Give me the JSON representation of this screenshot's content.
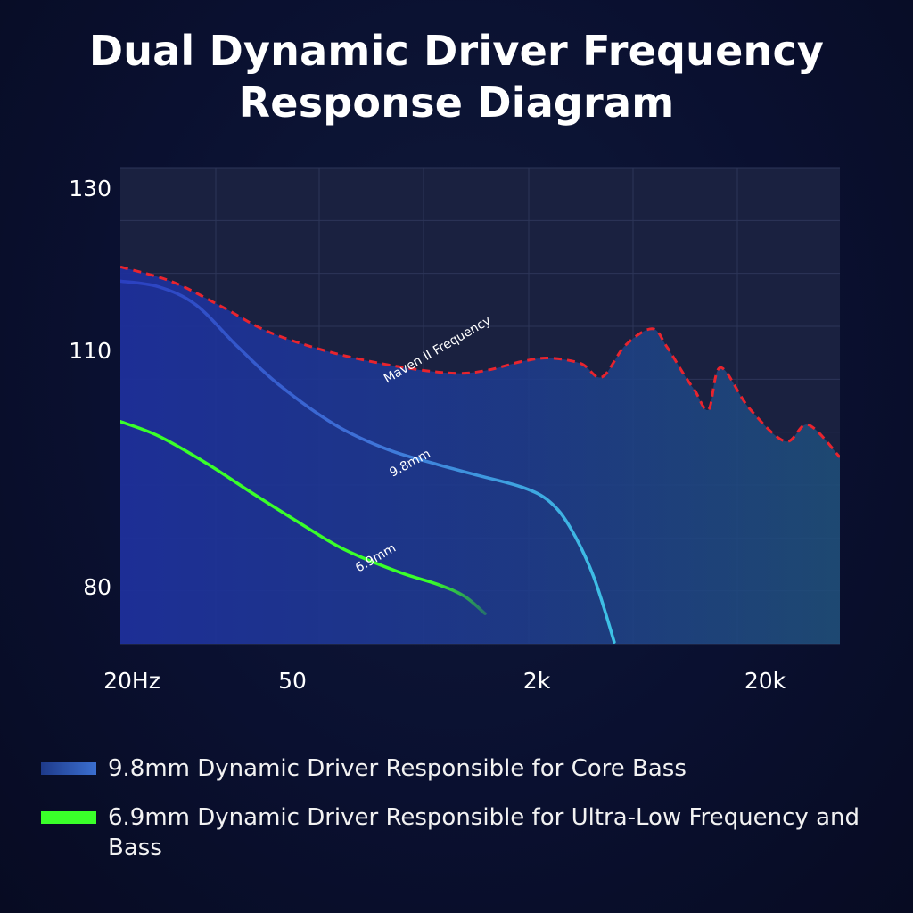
{
  "title": {
    "line1": "Dual Dynamic Driver Frequency",
    "line2": "Response Diagram"
  },
  "colors": {
    "maven": "#e8242e",
    "driver_98": "#3b5fd6",
    "driver_69": "#3aff2a",
    "plot_bg": "#1a2140"
  },
  "chart_data": {
    "type": "line",
    "x_scale": "log",
    "x_ticks": [
      {
        "value": 20,
        "label": "20Hz"
      },
      {
        "value": 50,
        "label": "50"
      },
      {
        "value": 2000,
        "label": "2k"
      },
      {
        "value": 20000,
        "label": "20k"
      }
    ],
    "y_ticks": [
      {
        "value": 130,
        "label": "130"
      },
      {
        "value": 110,
        "label": "110"
      },
      {
        "value": 80,
        "label": "80"
      }
    ],
    "ylim": [
      70,
      130
    ],
    "grid": true,
    "series": [
      {
        "name": "Maven II Frequency",
        "style": "dashed",
        "x": [
          20,
          35,
          60,
          100,
          200,
          400,
          700,
          1000,
          1500,
          2000,
          2800,
          3500,
          4500,
          6000,
          7000,
          8500,
          9500,
          11000,
          12500,
          17000,
          25000,
          32000,
          45000
        ],
        "y": [
          117.5,
          115.6,
          112.4,
          109.2,
          106.6,
          104.9,
          104.1,
          104.4,
          105.6,
          106.0,
          105.3,
          103.6,
          107.6,
          109.7,
          107.5,
          103.8,
          101.9,
          99.5,
          104.8,
          99.7,
          95.5,
          97.6,
          93.5
        ]
      },
      {
        "name": "9.8mm",
        "x": [
          20,
          30,
          45,
          70,
          110,
          200,
          350,
          600,
          900,
          1500,
          2000,
          2500,
          3200,
          4000
        ],
        "y": [
          115.7,
          115.0,
          112.7,
          107.5,
          102.6,
          97.6,
          94.5,
          92.6,
          91.3,
          89.7,
          87.9,
          84.6,
          78.5,
          70.2
        ]
      },
      {
        "name": "6.9mm",
        "x": [
          20,
          30,
          50,
          80,
          130,
          220,
          400,
          600,
          800,
          1000
        ],
        "y": [
          98.0,
          96.2,
          92.8,
          89.2,
          85.6,
          81.9,
          79.0,
          77.5,
          76.0,
          73.8
        ]
      }
    ]
  },
  "legend": {
    "items": [
      {
        "label": "9.8mm Dynamic Driver Responsible for Core Bass"
      },
      {
        "label": "6.9mm Dynamic Driver Responsible for Ultra-Low Frequency and Bass"
      }
    ]
  }
}
